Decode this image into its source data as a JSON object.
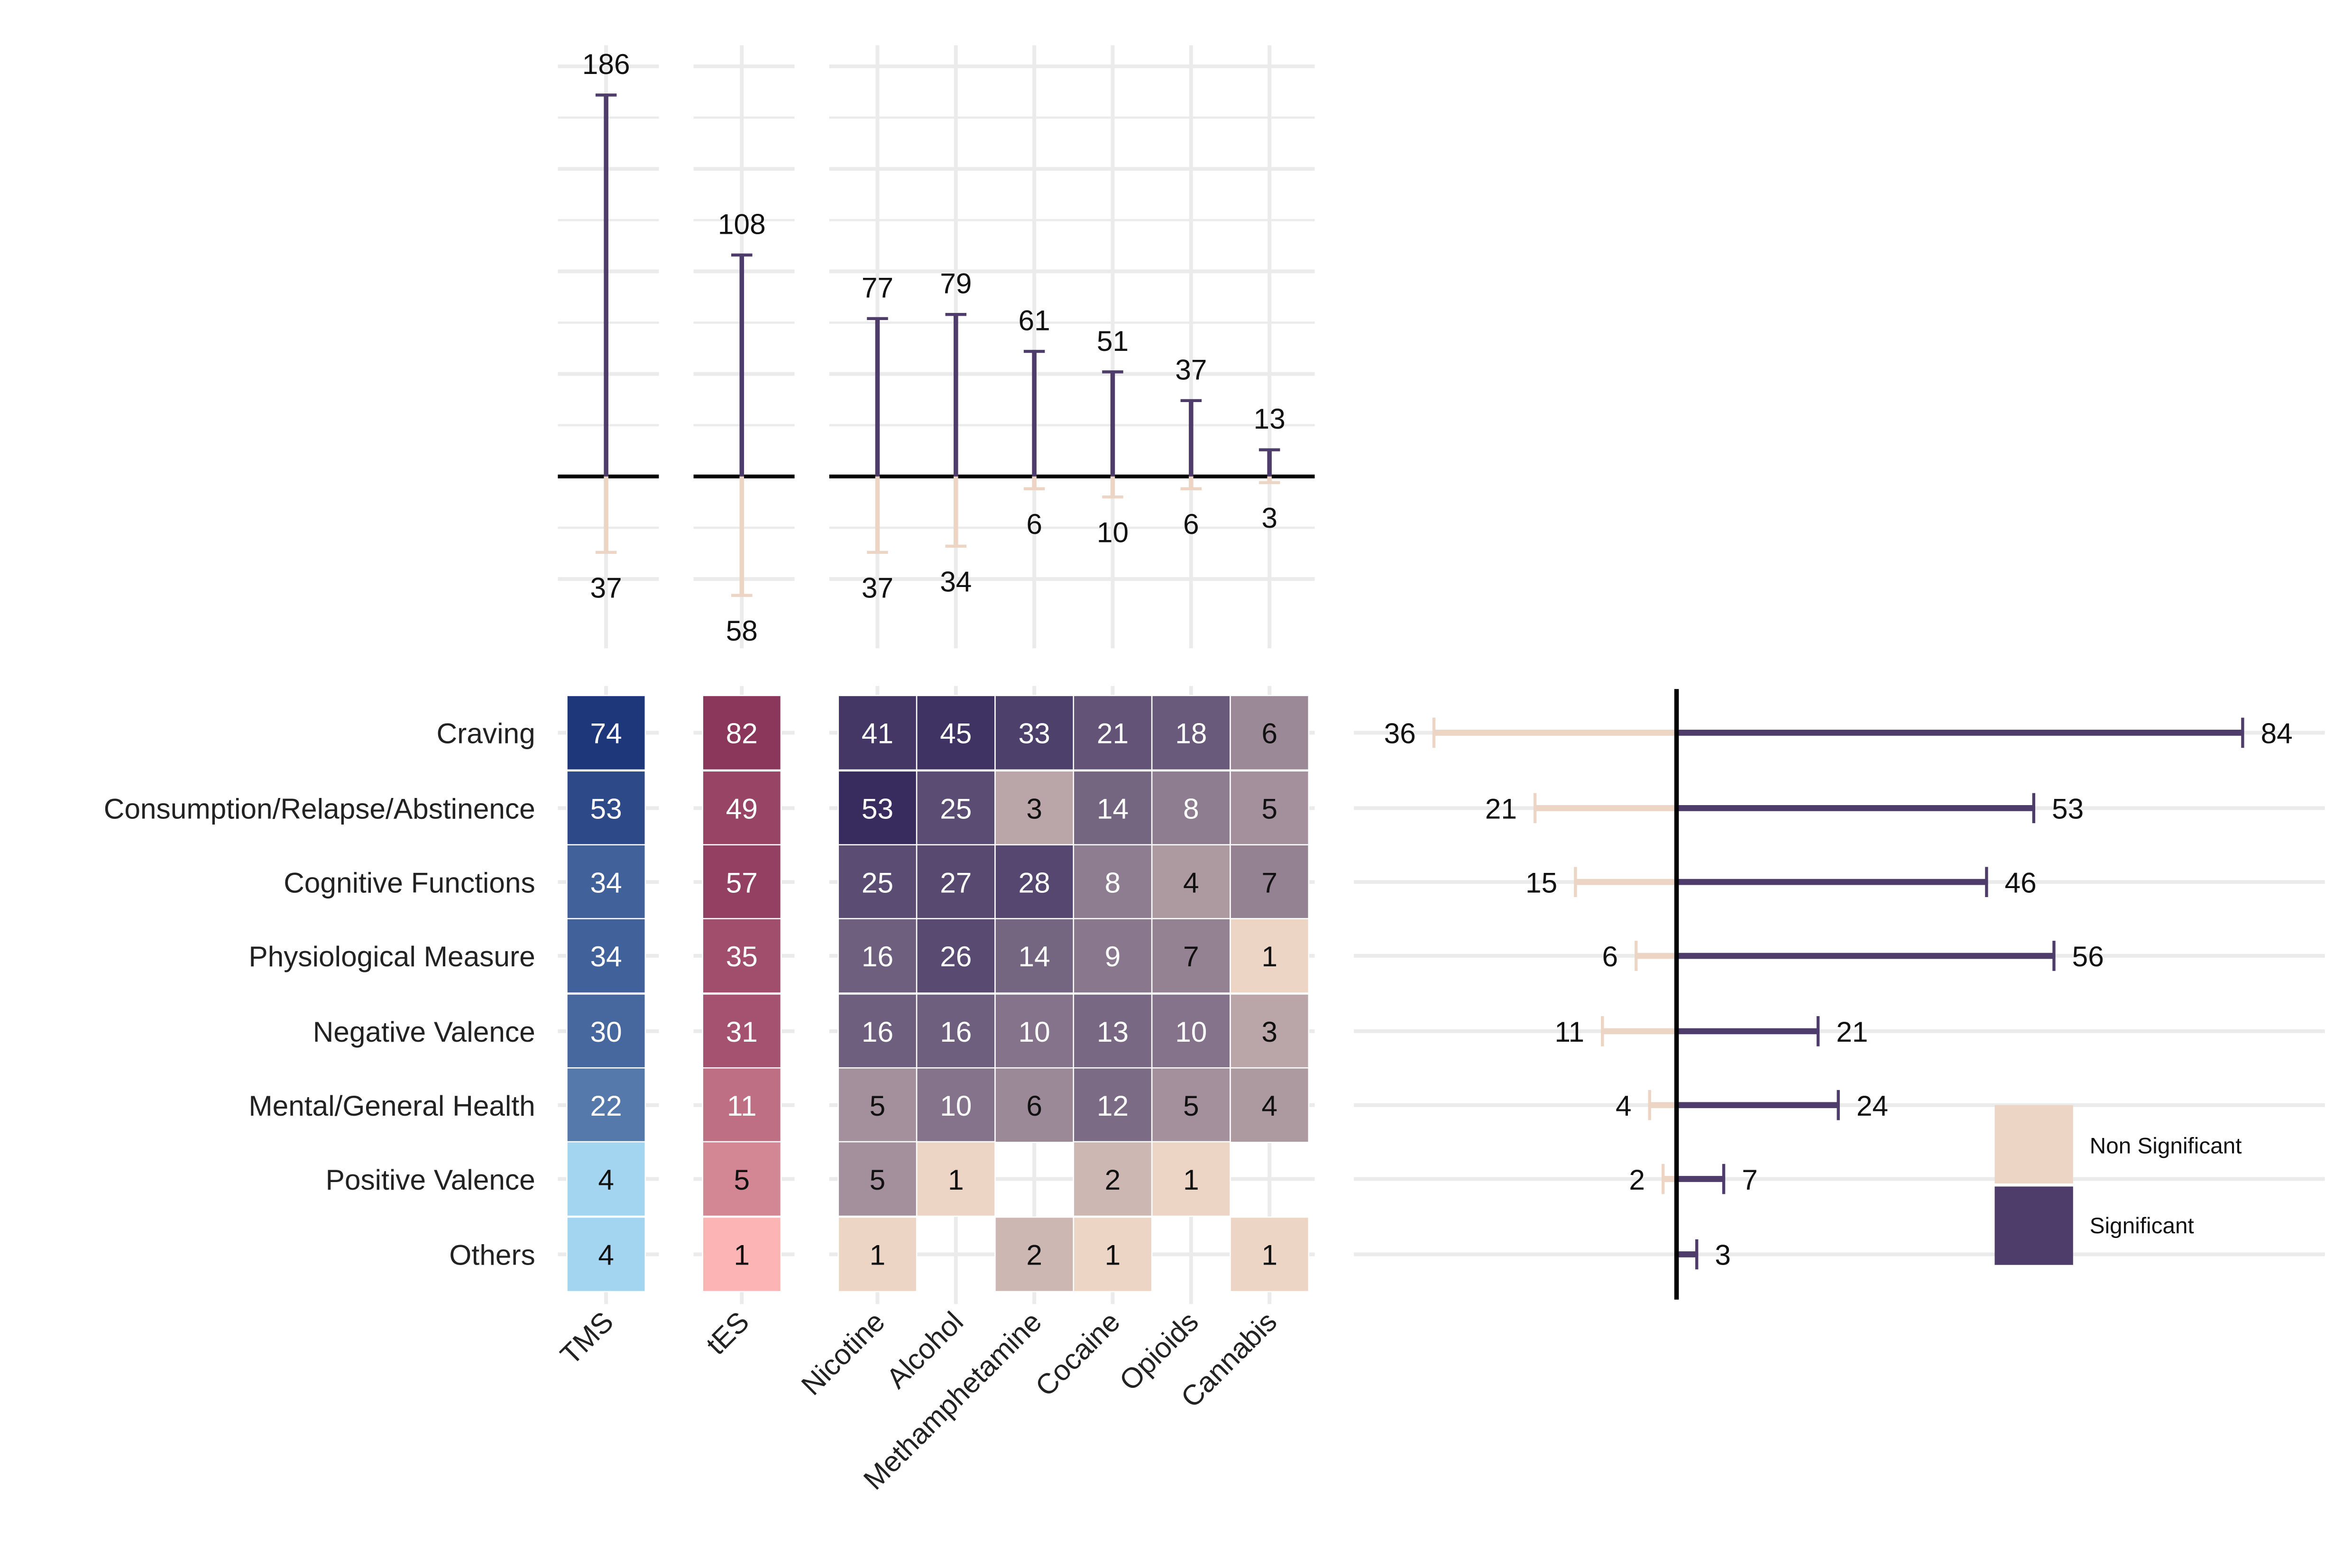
{
  "colors": {
    "significant": "#4e3d6a",
    "non_significant": "#ecd5c5",
    "tms_scale": [
      "#a3d5f1",
      "#1e377a"
    ],
    "tes_scale": [
      "#fdb4b4",
      "#8b365b"
    ],
    "substance_scale": [
      "#ecd5c5",
      "#382c5f"
    ]
  },
  "legend": {
    "non_significant": "Non Significant",
    "significant": "Significant"
  },
  "chart_data": [
    {
      "type": "bar",
      "categories": [
        "TMS",
        "tES",
        "Nicotine",
        "Alcohol",
        "Methamphetamine",
        "Cocaine",
        "Opioids",
        "Cannabis"
      ],
      "series": [
        {
          "name": "Significant",
          "values": [
            186,
            108,
            77,
            79,
            61,
            51,
            37,
            13
          ]
        },
        {
          "name": "Non Significant",
          "values": [
            37,
            58,
            37,
            34,
            6,
            10,
            6,
            3
          ]
        }
      ],
      "ylim": [
        -75,
        200
      ],
      "grid": true
    },
    {
      "type": "heatmap",
      "rows": [
        "Craving",
        "Consumption/Relapse/Abstinence",
        "Cognitive Functions",
        "Physiological Measure",
        "Negative Valence",
        "Mental/General Health",
        "Positive Valence",
        "Others"
      ],
      "columns": [
        "TMS",
        "tES",
        "Nicotine",
        "Alcohol",
        "Methamphetamine",
        "Cocaine",
        "Opioids",
        "Cannabis"
      ],
      "values": [
        [
          74,
          82,
          41,
          45,
          33,
          21,
          18,
          6
        ],
        [
          53,
          49,
          53,
          25,
          3,
          14,
          8,
          5
        ],
        [
          34,
          57,
          25,
          27,
          28,
          8,
          4,
          7
        ],
        [
          34,
          35,
          16,
          26,
          14,
          9,
          7,
          1
        ],
        [
          30,
          31,
          16,
          16,
          10,
          13,
          10,
          3
        ],
        [
          22,
          11,
          5,
          10,
          6,
          12,
          5,
          4
        ],
        [
          4,
          5,
          5,
          1,
          null,
          2,
          1,
          null
        ],
        [
          4,
          1,
          1,
          null,
          2,
          1,
          null,
          1
        ]
      ]
    },
    {
      "type": "bar",
      "orientation": "horizontal",
      "categories": [
        "Craving",
        "Consumption/Relapse/Abstinence",
        "Cognitive Functions",
        "Physiological Measure",
        "Negative Valence",
        "Mental/General Health",
        "Positive Valence",
        "Others"
      ],
      "series": [
        {
          "name": "Significant",
          "values": [
            84,
            53,
            46,
            56,
            21,
            24,
            7,
            3
          ]
        },
        {
          "name": "Non Significant",
          "values": [
            36,
            21,
            15,
            6,
            11,
            4,
            2,
            null
          ]
        }
      ],
      "legend_position": "right",
      "grid": true
    }
  ]
}
